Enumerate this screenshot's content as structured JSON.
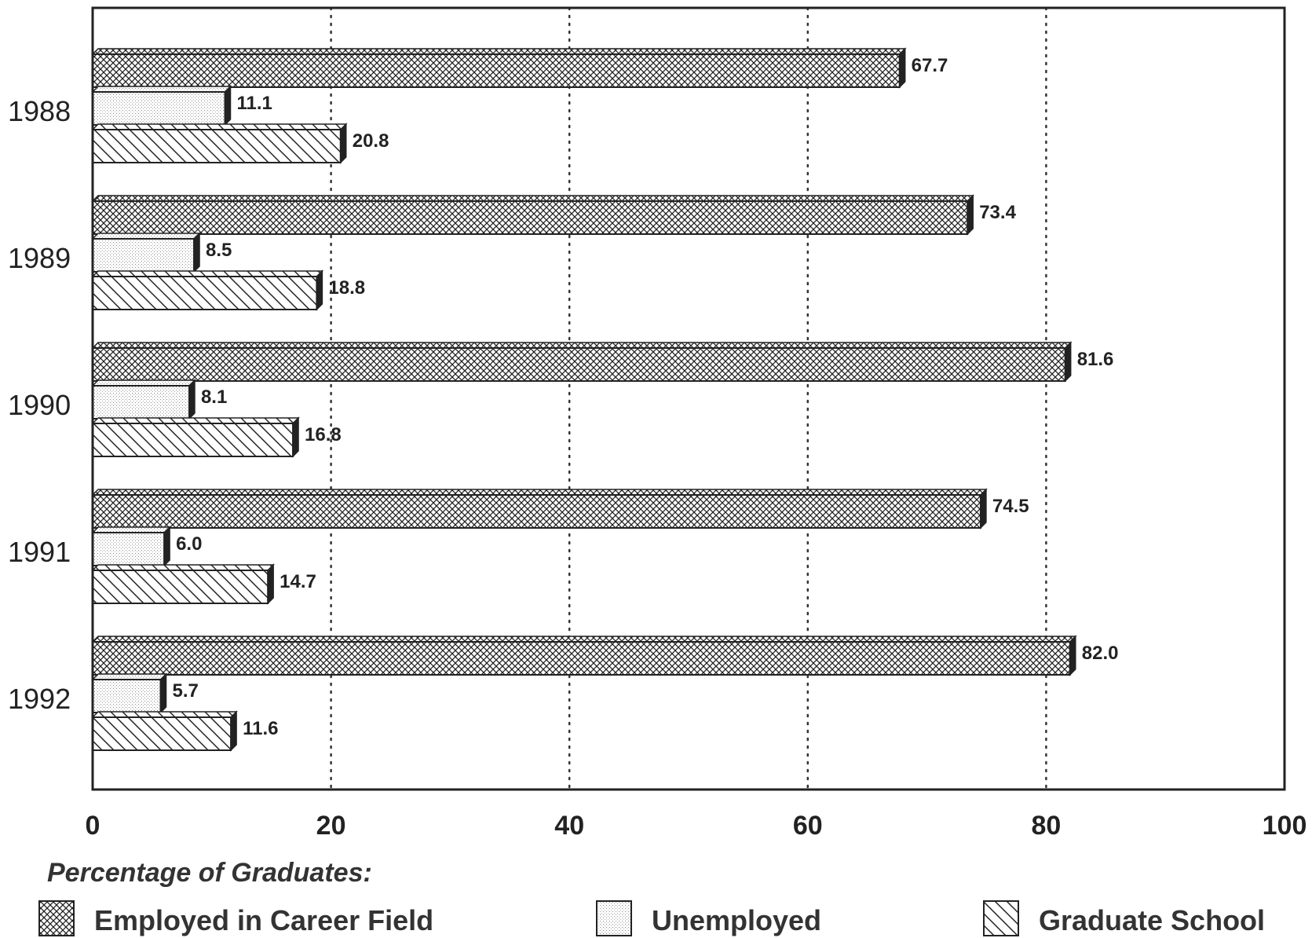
{
  "chart_data": {
    "type": "bar",
    "orientation": "horizontal",
    "categories": [
      "1988",
      "1989",
      "1990",
      "1991",
      "1992"
    ],
    "series": [
      {
        "name": "Employed in Career Field",
        "values": [
          67.7,
          73.4,
          81.6,
          74.5,
          82.0
        ],
        "labels": [
          "67.7",
          "73.4",
          "81.6",
          "74.5",
          "82.0"
        ]
      },
      {
        "name": "Unemployed",
        "values": [
          11.1,
          8.5,
          8.1,
          6.0,
          5.7
        ],
        "labels": [
          "11.1",
          "8.5",
          "8.1",
          "6.0",
          "5.7"
        ]
      },
      {
        "name": "Graduate School",
        "values": [
          20.8,
          18.8,
          16.8,
          14.7,
          11.6
        ],
        "labels": [
          "20.8",
          "18.8",
          "16.8",
          "14.7",
          "11.6"
        ]
      }
    ],
    "xlabel": "Percentage of Graduates:",
    "xlim": [
      0,
      100
    ],
    "xticks": [
      0,
      20,
      40,
      60,
      80,
      100
    ],
    "xtick_labels": [
      "0",
      "20",
      "40",
      "60",
      "80",
      "100"
    ],
    "grid": "vertical dotted",
    "legend_position": "bottom"
  }
}
